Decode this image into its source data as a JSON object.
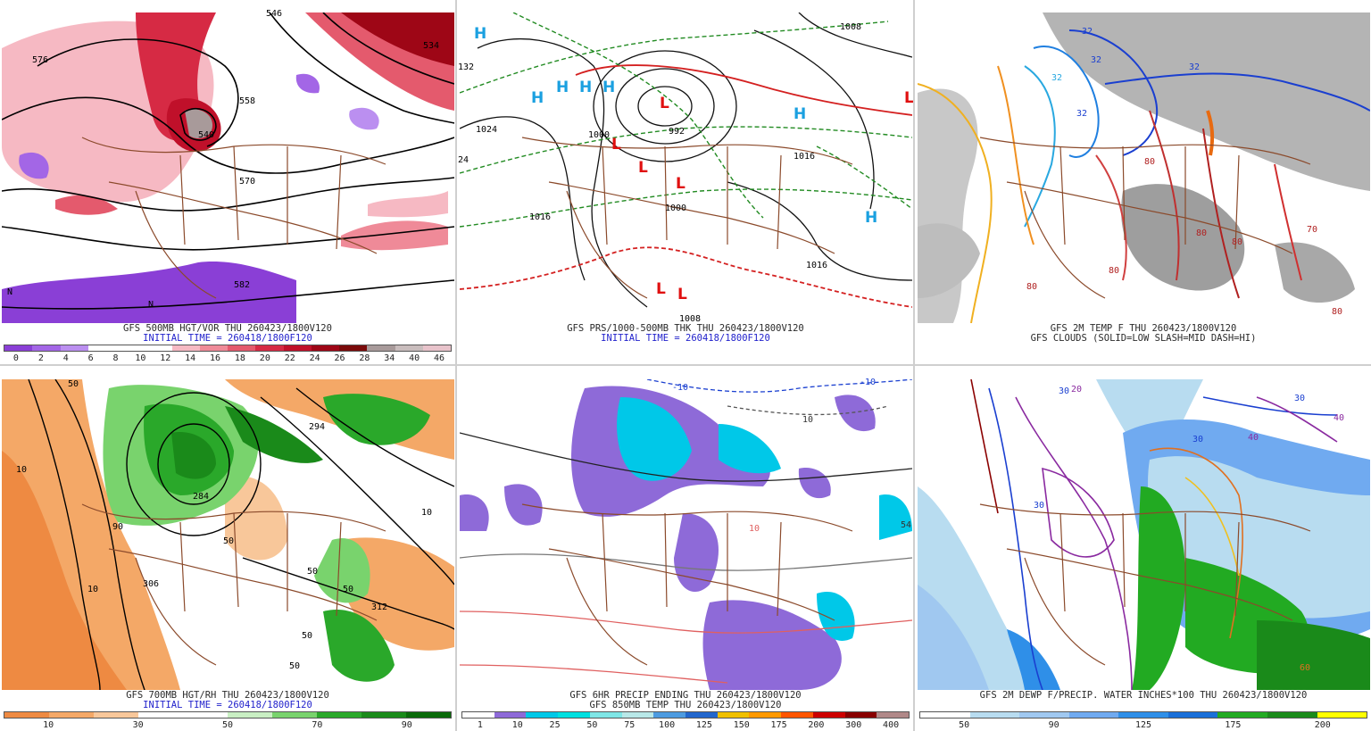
{
  "panels": [
    {
      "caption1": "GFS 500MB HGT/VOR THU 260423/1800V120",
      "caption2": "INITIAL TIME = 260418/1800F120",
      "colorbar": {
        "colors": [
          "#8a3fd6",
          "#a366e6",
          "#bb8ff0",
          "#ffffff",
          "#ffffff",
          "#ffffff",
          "#f6b9c3",
          "#ef8a98",
          "#e45a6d",
          "#d62a44",
          "#c0102a",
          "#9e0616",
          "#7a0a0a",
          "#a89a9a",
          "#c9bdbd",
          "#e8c3cb"
        ],
        "ticks": [
          "0",
          "2",
          "4",
          "6",
          "8",
          "10",
          "12",
          "14",
          "16",
          "18",
          "20",
          "22",
          "24",
          "26",
          "28",
          "34",
          "40",
          "46"
        ]
      },
      "labels": [
        "576",
        "570",
        "582",
        "546",
        "534",
        "558",
        "540",
        "N",
        "N"
      ]
    },
    {
      "caption1": "GFS PRS/1000-500MB THK THU 260423/1800V120",
      "caption2": "INITIAL TIME = 260418/1800F120",
      "labels": [
        "H",
        "H",
        "H",
        "H",
        "H",
        "H",
        "H",
        "L",
        "L",
        "L",
        "L",
        "L",
        "L",
        "L",
        "1024",
        "1008",
        "1000",
        "992",
        "1016",
        "1000",
        "1016",
        "1016",
        "1008",
        "24",
        "132"
      ]
    },
    {
      "caption1": "GFS 2M TEMP F THU 260423/1800V120",
      "caption2": "GFS CLOUDS (SOLID=LOW SLASH=MID DASH=HI)",
      "labels": [
        "32",
        "32",
        "32",
        "32",
        "32",
        "80",
        "80",
        "80",
        "80",
        "80",
        "70",
        "80"
      ]
    },
    {
      "caption1": "GFS 700MB HGT/RH THU 260423/1800V120",
      "caption2": "INITIAL TIME = 260418/1800F120",
      "colorbar": {
        "colors": [
          "#ee8a42",
          "#f4a867",
          "#f8c79a",
          "#ffffff",
          "#ffffff",
          "#c9efc3",
          "#79d36d",
          "#2aa82a",
          "#1a8a1a",
          "#0a6a0a"
        ],
        "ticks": [
          "10",
          "30",
          "50",
          "70",
          "90"
        ]
      },
      "labels": [
        "50",
        "10",
        "90",
        "50",
        "306",
        "50",
        "10",
        "50",
        "50",
        "10",
        "284",
        "312",
        "50",
        "294"
      ]
    },
    {
      "caption1": "GFS 6HR PRECIP ENDING THU 260423/1800V120",
      "caption2": "GFS 850MB TEMP THU 260423/1800V120",
      "colorbar": {
        "colors": [
          "#ffffff",
          "#8e6ad8",
          "#00c8e8",
          "#00e0e0",
          "#7fe6e6",
          "#b8e8e8",
          "#4d9be0",
          "#2266cc",
          "#f0c000",
          "#ff9900",
          "#ff5500",
          "#cc0000",
          "#880000",
          "#b08888"
        ],
        "ticks": [
          "1",
          "10",
          "25",
          "50",
          "75",
          "100",
          "125",
          "150",
          "175",
          "200",
          "300",
          "400"
        ]
      },
      "labels": [
        "-10",
        "-10",
        "10",
        "10",
        "54"
      ]
    },
    {
      "caption1": "GFS 2M DEWP F/PRECIP. WATER INCHES*100 THU 260423/1800V120",
      "caption2": "",
      "colorbar": {
        "colors": [
          "#ffffff",
          "#b8dcf0",
          "#a0c8f0",
          "#70aaf0",
          "#2f8fe8",
          "#1a6fd8",
          "#22aa22",
          "#1a8a1a",
          "#ffff00"
        ],
        "ticks": [
          "50",
          "90",
          "125",
          "175",
          "200"
        ]
      },
      "labels": [
        "30",
        "30",
        "30",
        "40",
        "30",
        "40",
        "20",
        "60"
      ]
    }
  ]
}
